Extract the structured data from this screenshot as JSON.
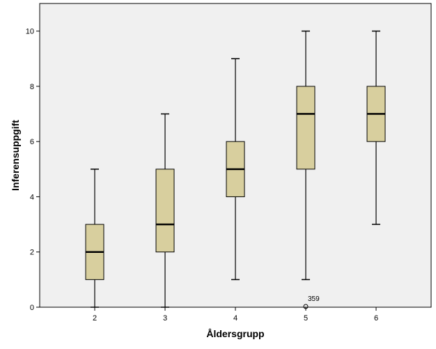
{
  "chart_data": {
    "type": "boxplot",
    "xlabel": "Åldersgrupp",
    "ylabel": "Inferensuppgift",
    "ylim": [
      0,
      11
    ],
    "yticks": [
      0,
      2,
      4,
      6,
      8,
      10
    ],
    "categories": [
      "2",
      "3",
      "4",
      "5",
      "6"
    ],
    "boxes": [
      {
        "category": "2",
        "whisker_low": 0,
        "q1": 1,
        "median": 2,
        "q3": 3,
        "whisker_high": 5
      },
      {
        "category": "3",
        "whisker_low": 0,
        "q1": 2,
        "median": 3,
        "q3": 5,
        "whisker_high": 7
      },
      {
        "category": "4",
        "whisker_low": 1,
        "q1": 4,
        "median": 5,
        "q3": 6,
        "whisker_high": 9
      },
      {
        "category": "5",
        "whisker_low": 1,
        "q1": 5,
        "median": 7,
        "q3": 8,
        "whisker_high": 10
      },
      {
        "category": "6",
        "whisker_low": 3,
        "q1": 6,
        "median": 7,
        "q3": 8,
        "whisker_high": 10
      }
    ],
    "outliers": [
      {
        "category": "5",
        "value": 0,
        "label": "359"
      }
    ],
    "colors": {
      "plot_background": "#f0f0f0",
      "box_fill": "#d8cf9e",
      "line": "#000000"
    },
    "grid": false
  }
}
